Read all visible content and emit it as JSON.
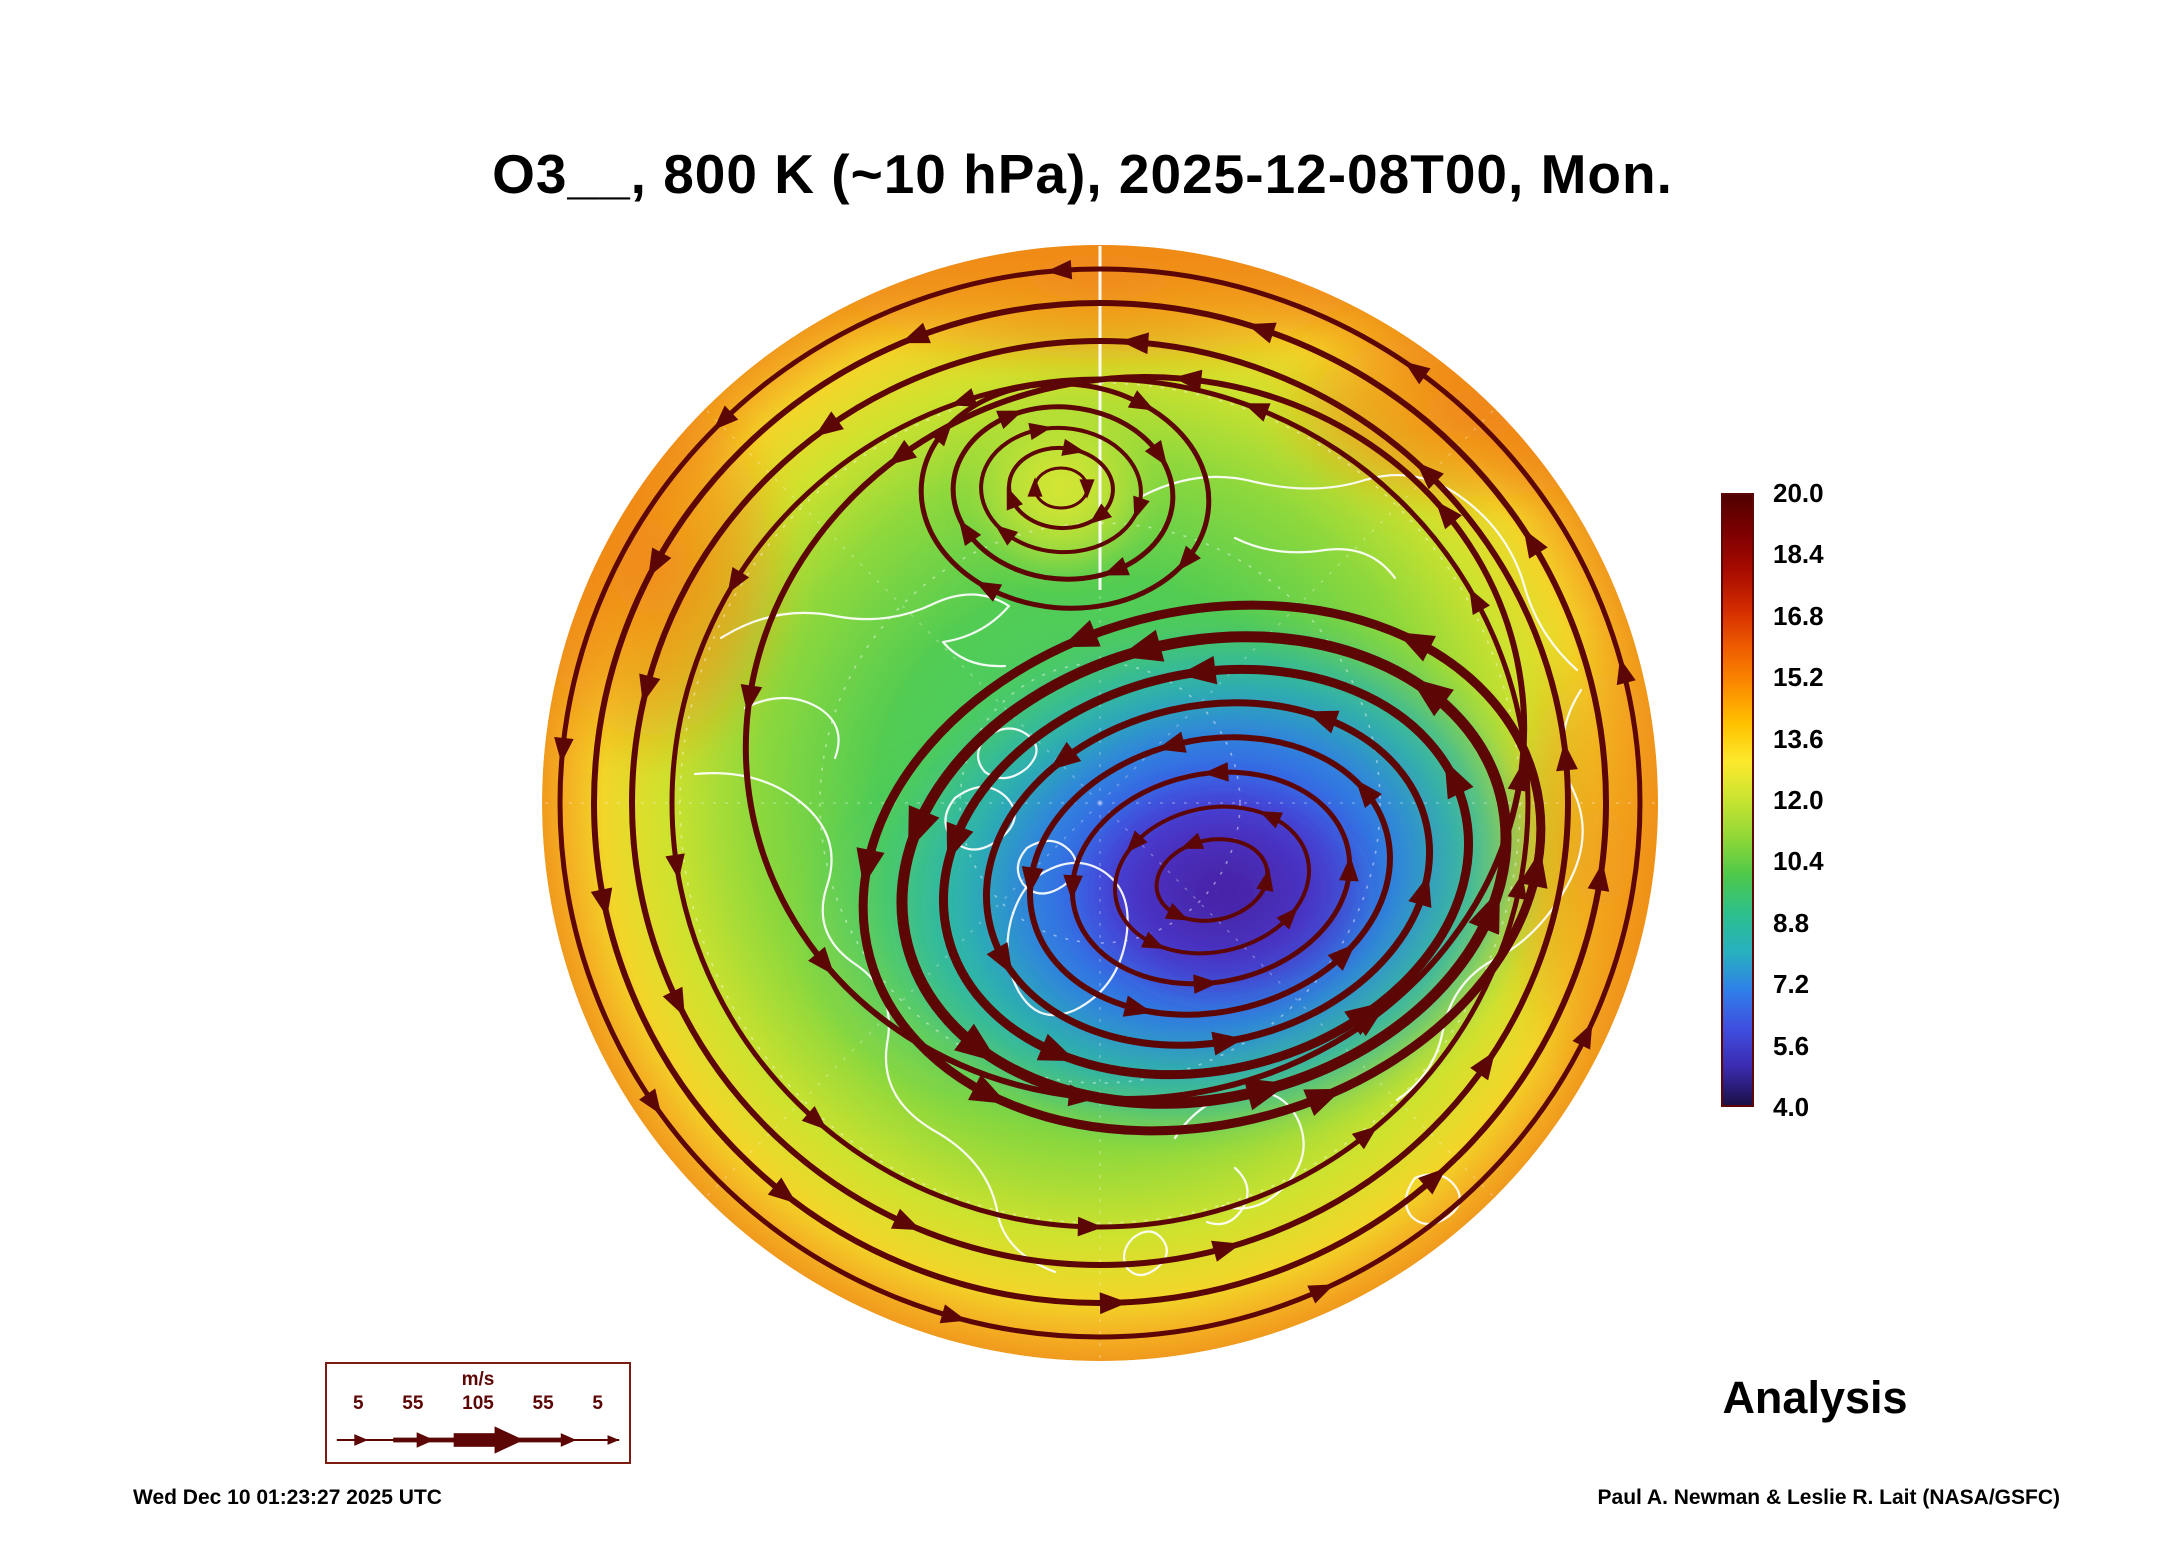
{
  "title": "O3__, 800 K (~10 hPa), 2025-12-08T00, Mon.",
  "colors": {
    "streamline": "#5c0605",
    "coastline": "#ffffff",
    "background": "#ffffff"
  },
  "colorbar": {
    "labels": [
      "20.0",
      "18.4",
      "16.8",
      "15.2",
      "13.6",
      "12.0",
      "10.4",
      "8.8",
      "7.2",
      "5.6",
      "4.0"
    ],
    "colors": [
      "#500000",
      "#7e0000",
      "#a80b00",
      "#d22c00",
      "#ef5c00",
      "#fb8c00",
      "#ffc100",
      "#fde92c",
      "#c8e431",
      "#8fd737",
      "#4cc84c",
      "#2cbf8e",
      "#28b0c0",
      "#2f7fe8",
      "#3f4ee0",
      "#3b2bb0",
      "#1c1048"
    ]
  },
  "analysis_label": "Analysis",
  "wind_legend": {
    "units_label": "m/s",
    "tick_labels": [
      "5",
      "55",
      "105",
      "55",
      "5"
    ]
  },
  "footer": {
    "timestamp": "Wed Dec 10 01:23:27 2025 UTC",
    "credit": "Paul A. Newman & Leslie R. Lait (NASA/GSFC)"
  },
  "chart_data": {
    "type": "heatmap",
    "title": "O3__, 800 K (~10 hPa), 2025-12-08T00, Mon.",
    "field": "O3",
    "level": "800 K (~10 hPa)",
    "valid_time": "2025-12-08T00",
    "weekday": "Mon.",
    "product": "Analysis",
    "projection": "north polar stereographic",
    "colorbar_ticks": [
      20.0,
      18.4,
      16.8,
      15.2,
      13.6,
      12.0,
      10.4,
      8.8,
      7.2,
      5.6,
      4.0
    ],
    "colorbar_range": [
      4.0,
      20.0
    ],
    "wind_speed_legend": {
      "units": "m/s",
      "ticks": [
        5,
        55,
        105,
        55,
        5
      ]
    },
    "overlays": [
      "wind streamlines with arrowheads (dark red)",
      "coastlines (white)",
      "latitude/longitude graticule (white, dashed)"
    ],
    "visible_features": [
      "low-ozone polar vortex (blue/purple, ~5-9) centered just off the pole toward the Siberian side, ringed by tightly packed dark streamlines",
      "closed anticyclonic streamline cell (green/yellow, ~12-13) on the opposite side of the pole",
      "high ozone collar (yellow/orange/red, ~13-18) around the outer mid-latitude rim"
    ],
    "generated_timestamp": "Wed Dec 10 01:23:27 2025 UTC",
    "credit": "Paul A. Newman & Leslie R. Lait (NASA/GSFC)"
  }
}
